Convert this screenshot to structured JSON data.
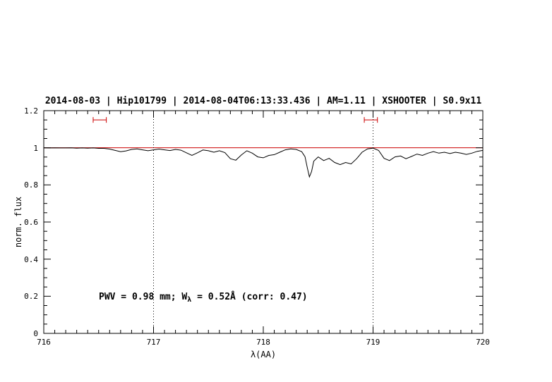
{
  "title": "2014-08-03 | Hip101799 | 2014-08-04T06:13:33.436 | AM=1.11 | XSHOOTER | S0.9x11",
  "annotation": {
    "pre": "PWV = 0.98 mm; W",
    "sub": "λ",
    "post": " = 0.52Å (corr: 0.47)"
  },
  "axes": {
    "xlabel": "λ(AA)",
    "ylabel": "norm. flux",
    "xtick_labels": [
      "716",
      "717",
      "718",
      "719",
      "720"
    ],
    "ytick_labels": [
      "0",
      "0.2",
      "0.4",
      "0.6",
      "0.8",
      "1",
      "1.2"
    ]
  },
  "colors": {
    "accent_blue": "#0000cd",
    "continuum_red": "#cc0000",
    "spectrum_black": "#000000"
  },
  "chart_data": {
    "type": "line",
    "title": "2014-08-03 | Hip101799 | 2014-08-04T06:13:33.436 | AM=1.11 | XSHOOTER | S0.9x11",
    "xlabel": "λ(AA)",
    "ylabel": "norm. flux",
    "xlim": [
      716,
      720
    ],
    "ylim": [
      0,
      1.2
    ],
    "xticks": [
      716,
      717,
      718,
      719,
      720
    ],
    "yticks": [
      0,
      0.2,
      0.4,
      0.6,
      0.8,
      1,
      1.2
    ],
    "x_minor_step": 0.1,
    "y_minor_step": 0.05,
    "grid": false,
    "legend": "none",
    "dotted_vlines": [
      717,
      719
    ],
    "continuum_y": 1.0,
    "band_markers": [
      {
        "x1": 716.45,
        "x2": 716.57,
        "y": 1.15
      },
      {
        "x1": 718.92,
        "x2": 719.04,
        "y": 1.15
      }
    ],
    "annotation": "PWV = 0.98 mm; Wλ = 0.52Å (corr: 0.47)",
    "series": [
      {
        "name": "normalized telluric spectrum",
        "points": [
          [
            716.0,
            1.0
          ],
          [
            716.05,
            0.999
          ],
          [
            716.1,
            1.0
          ],
          [
            716.15,
            0.999
          ],
          [
            716.2,
            0.999
          ],
          [
            716.25,
            1.0
          ],
          [
            716.3,
            0.998
          ],
          [
            716.35,
            0.999
          ],
          [
            716.4,
            0.998
          ],
          [
            716.45,
            0.999
          ],
          [
            716.5,
            0.997
          ],
          [
            716.55,
            0.997
          ],
          [
            716.6,
            0.993
          ],
          [
            716.65,
            0.986
          ],
          [
            716.7,
            0.979
          ],
          [
            716.75,
            0.983
          ],
          [
            716.8,
            0.991
          ],
          [
            716.85,
            0.994
          ],
          [
            716.9,
            0.989
          ],
          [
            716.95,
            0.984
          ],
          [
            717.0,
            0.989
          ],
          [
            717.05,
            0.993
          ],
          [
            717.1,
            0.989
          ],
          [
            717.15,
            0.985
          ],
          [
            717.2,
            0.991
          ],
          [
            717.25,
            0.987
          ],
          [
            717.3,
            0.973
          ],
          [
            717.35,
            0.959
          ],
          [
            717.4,
            0.973
          ],
          [
            717.45,
            0.988
          ],
          [
            717.5,
            0.984
          ],
          [
            717.55,
            0.976
          ],
          [
            717.6,
            0.984
          ],
          [
            717.65,
            0.974
          ],
          [
            717.7,
            0.941
          ],
          [
            717.75,
            0.933
          ],
          [
            717.8,
            0.961
          ],
          [
            717.85,
            0.984
          ],
          [
            717.9,
            0.971
          ],
          [
            717.95,
            0.951
          ],
          [
            718.0,
            0.946
          ],
          [
            718.05,
            0.959
          ],
          [
            718.1,
            0.963
          ],
          [
            718.15,
            0.976
          ],
          [
            718.2,
            0.989
          ],
          [
            718.25,
            0.994
          ],
          [
            718.3,
            0.991
          ],
          [
            718.35,
            0.979
          ],
          [
            718.38,
            0.952
          ],
          [
            718.4,
            0.895
          ],
          [
            718.42,
            0.843
          ],
          [
            718.44,
            0.872
          ],
          [
            718.46,
            0.928
          ],
          [
            718.5,
            0.951
          ],
          [
            718.55,
            0.931
          ],
          [
            718.6,
            0.943
          ],
          [
            718.65,
            0.921
          ],
          [
            718.7,
            0.909
          ],
          [
            718.75,
            0.921
          ],
          [
            718.8,
            0.913
          ],
          [
            718.85,
            0.941
          ],
          [
            718.9,
            0.976
          ],
          [
            718.95,
            0.994
          ],
          [
            719.0,
            0.998
          ],
          [
            719.05,
            0.986
          ],
          [
            719.1,
            0.943
          ],
          [
            719.15,
            0.931
          ],
          [
            719.2,
            0.951
          ],
          [
            719.25,
            0.956
          ],
          [
            719.3,
            0.941
          ],
          [
            719.35,
            0.953
          ],
          [
            719.4,
            0.966
          ],
          [
            719.45,
            0.959
          ],
          [
            719.5,
            0.971
          ],
          [
            719.55,
            0.979
          ],
          [
            719.6,
            0.971
          ],
          [
            719.65,
            0.976
          ],
          [
            719.7,
            0.969
          ],
          [
            719.75,
            0.976
          ],
          [
            719.8,
            0.971
          ],
          [
            719.85,
            0.964
          ],
          [
            719.9,
            0.971
          ],
          [
            719.95,
            0.981
          ],
          [
            720.0,
            0.986
          ]
        ]
      }
    ]
  }
}
